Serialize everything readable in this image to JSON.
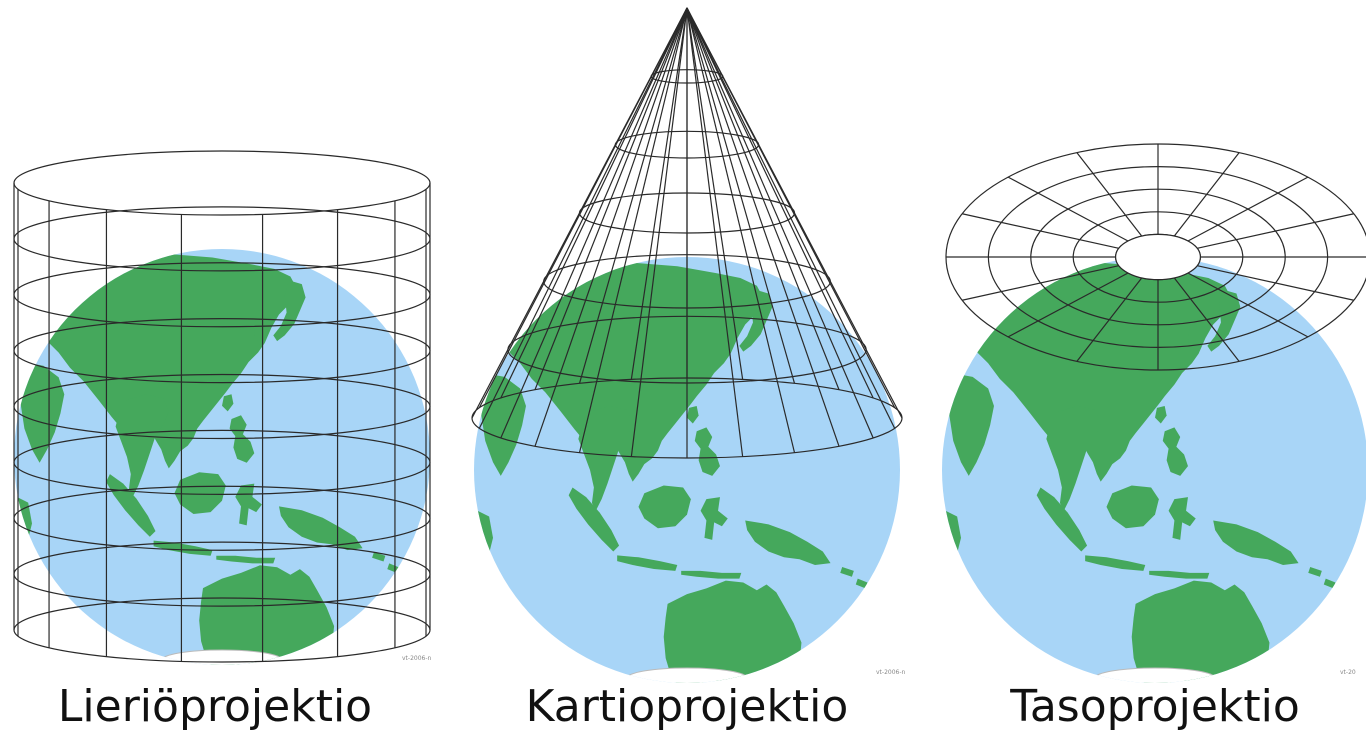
{
  "colors": {
    "ocean": "#a8d5f7",
    "land": "#45a85c",
    "grid": "#2a2a2a",
    "ice": "#ffffff",
    "caption": "#111111"
  },
  "panels": [
    {
      "id": "cylindrical",
      "projection_surface": "cylinder",
      "caption": "Lieriöprojektio",
      "credit": "vt-2006-n"
    },
    {
      "id": "conic",
      "projection_surface": "cone",
      "caption": "Kartioprojektio",
      "credit": "vt-2006-n"
    },
    {
      "id": "planar",
      "projection_surface": "plane",
      "caption": "Tasoprojektio",
      "credit": "vt-20"
    }
  ]
}
